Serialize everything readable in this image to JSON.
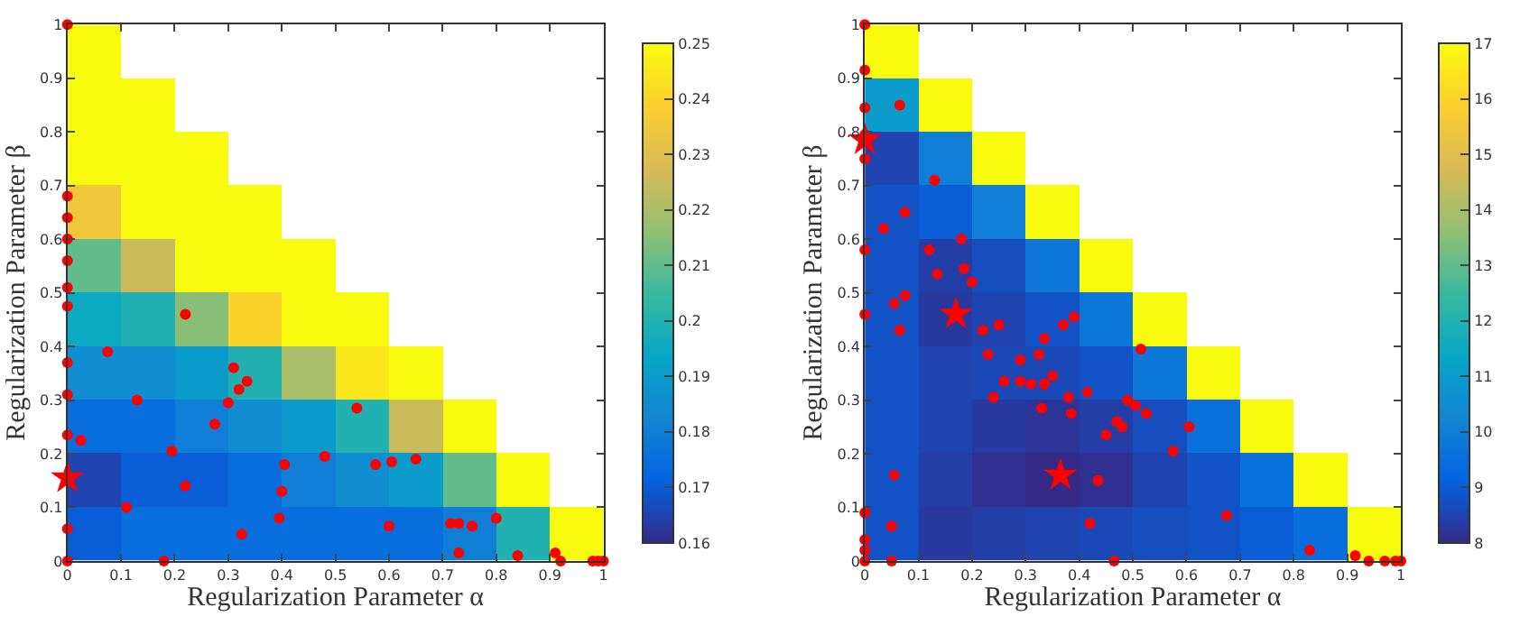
{
  "chart_data": [
    {
      "type": "heatmap",
      "xlabel": "Regularization Parameter α",
      "ylabel": "Regularization Parameter β",
      "xlim": [
        0,
        1
      ],
      "ylim": [
        0,
        1
      ],
      "xticks": [
        0,
        0.1,
        0.2,
        0.3,
        0.4,
        0.5,
        0.6,
        0.7,
        0.8,
        0.9,
        1
      ],
      "yticks": [
        0,
        0.1,
        0.2,
        0.3,
        0.4,
        0.5,
        0.6,
        0.7,
        0.8,
        0.9,
        1
      ],
      "clim": [
        0.16,
        0.25
      ],
      "cticks": [
        0.16,
        0.17,
        0.18,
        0.19,
        0.2,
        0.21,
        0.22,
        0.23,
        0.24,
        0.25
      ],
      "cells": [
        [
          0.25,
          null,
          null,
          null,
          null,
          null,
          null,
          null,
          null,
          null
        ],
        [
          0.25,
          0.25,
          null,
          null,
          null,
          null,
          null,
          null,
          null,
          null
        ],
        [
          0.25,
          0.25,
          0.25,
          null,
          null,
          null,
          null,
          null,
          null,
          null
        ],
        [
          0.235,
          0.25,
          0.25,
          0.25,
          null,
          null,
          null,
          null,
          null,
          null
        ],
        [
          0.21,
          0.225,
          0.25,
          0.25,
          0.25,
          null,
          null,
          null,
          null,
          null
        ],
        [
          0.195,
          0.2,
          0.215,
          0.24,
          0.25,
          0.25,
          null,
          null,
          null,
          null
        ],
        [
          0.185,
          0.185,
          0.19,
          0.2,
          0.22,
          0.245,
          0.25,
          null,
          null,
          null
        ],
        [
          0.175,
          0.175,
          0.18,
          0.185,
          0.19,
          0.2,
          0.225,
          0.25,
          null,
          null
        ],
        [
          0.165,
          0.17,
          0.17,
          0.175,
          0.18,
          0.185,
          0.19,
          0.21,
          0.25,
          null
        ],
        [
          0.17,
          0.175,
          0.175,
          0.175,
          0.175,
          0.175,
          0.175,
          0.18,
          0.2,
          0.25
        ]
      ],
      "series": [
        {
          "type": "scatter",
          "marker": "circle",
          "color": "#ff0000",
          "x": [
            0,
            0,
            0,
            0,
            0,
            0,
            0,
            0,
            0,
            0,
            0,
            0,
            0.025,
            0.075,
            0.13,
            0.11,
            0.22,
            0.195,
            0.22,
            0.18,
            0.31,
            0.32,
            0.335,
            0.3,
            0.275,
            0.325,
            0.405,
            0.4,
            0.395,
            0.48,
            0.54,
            0.575,
            0.605,
            0.65,
            0.6,
            0.715,
            0.73,
            0.755,
            0.8,
            0.73,
            0.84,
            0.91,
            0.92,
            0.975,
            0.98,
            0.99,
            1
          ],
          "values": [
            1,
            0.68,
            0.64,
            0.6,
            0.56,
            0.51,
            0.475,
            0.37,
            0.31,
            0.235,
            0.06,
            0,
            0.225,
            0.39,
            0.3,
            0.1,
            0.46,
            0.205,
            0.14,
            0,
            0.36,
            0.32,
            0.335,
            0.295,
            0.255,
            0.05,
            0.18,
            0.13,
            0.08,
            0.195,
            0.285,
            0.18,
            0.185,
            0.19,
            0.065,
            0.07,
            0.07,
            0.065,
            0.08,
            0.015,
            0.01,
            0.015,
            0,
            null,
            0,
            0,
            0
          ]
        },
        {
          "type": "scatter",
          "marker": "star",
          "color": "#ff0000",
          "x": [
            0
          ],
          "values": [
            0.155
          ]
        }
      ]
    },
    {
      "type": "heatmap",
      "xlabel": "Regularization Parameter α",
      "ylabel": "Regularization Parameter β",
      "xlim": [
        0,
        1
      ],
      "ylim": [
        0,
        1
      ],
      "xticks": [
        0,
        0.1,
        0.2,
        0.3,
        0.4,
        0.5,
        0.6,
        0.7,
        0.8,
        0.9,
        1
      ],
      "yticks": [
        0,
        0.1,
        0.2,
        0.3,
        0.4,
        0.5,
        0.6,
        0.7,
        0.8,
        0.9,
        1
      ],
      "clim": [
        8,
        17
      ],
      "cticks": [
        8,
        9,
        10,
        11,
        12,
        13,
        14,
        15,
        16,
        17
      ],
      "cells": [
        [
          17,
          null,
          null,
          null,
          null,
          null,
          null,
          null,
          null,
          null
        ],
        [
          11,
          17,
          null,
          null,
          null,
          null,
          null,
          null,
          null,
          null
        ],
        [
          8.5,
          10,
          17,
          null,
          null,
          null,
          null,
          null,
          null,
          null
        ],
        [
          8.8,
          9,
          10,
          17,
          null,
          null,
          null,
          null,
          null,
          null
        ],
        [
          8.8,
          8.4,
          8.7,
          9.8,
          17,
          null,
          null,
          null,
          null,
          null
        ],
        [
          8.8,
          8.3,
          8.5,
          8.8,
          9.8,
          17,
          null,
          null,
          null,
          null
        ],
        [
          8.8,
          8.5,
          8.6,
          8.6,
          8.8,
          9.8,
          17,
          null,
          null,
          null
        ],
        [
          8.8,
          8.5,
          8.3,
          8.2,
          8.4,
          8.7,
          9.6,
          17,
          null,
          null
        ],
        [
          8.8,
          8.4,
          8.1,
          8,
          8.1,
          8.5,
          8.8,
          9.6,
          17,
          null
        ],
        [
          8.8,
          8.3,
          8.4,
          8.5,
          8.6,
          8.7,
          8.8,
          9,
          9.5,
          17
        ]
      ],
      "series": [
        {
          "type": "scatter",
          "marker": "circle",
          "color": "#ff0000",
          "x": [
            0,
            0,
            0,
            0,
            0,
            0,
            0,
            0,
            0,
            0,
            0,
            0.065,
            0.13,
            0.075,
            0.035,
            0.12,
            0.18,
            0.135,
            0.185,
            0.2,
            0.055,
            0.075,
            0.065,
            0.22,
            0.25,
            0.23,
            0.37,
            0.39,
            0.335,
            0.325,
            0.29,
            0.26,
            0.29,
            0.31,
            0.335,
            0.35,
            0.24,
            0.33,
            0.38,
            0.385,
            0.415,
            0.49,
            0.505,
            0.525,
            0.47,
            0.48,
            0.45,
            0.515,
            0.605,
            0.575,
            0.435,
            0.42,
            0.055,
            0.05,
            0.05,
            0.465,
            0.675,
            0.83,
            0.915,
            0.94,
            0.97,
            0.99,
            1
          ],
          "values": [
            1,
            0.915,
            0.845,
            0.795,
            0.75,
            0.58,
            0.46,
            0.09,
            0.04,
            0.02,
            0,
            0.85,
            0.71,
            0.65,
            0.62,
            0.58,
            0.6,
            0.535,
            0.545,
            0.52,
            0.48,
            0.495,
            0.43,
            0.43,
            0.44,
            0.385,
            0.44,
            0.455,
            0.415,
            0.385,
            0.375,
            0.335,
            0.335,
            0.33,
            0.33,
            0.345,
            0.305,
            0.285,
            0.305,
            0.275,
            0.315,
            0.3,
            0.29,
            0.275,
            0.26,
            0.25,
            0.235,
            0.395,
            0.25,
            0.205,
            0.15,
            0.07,
            0.16,
            0.065,
            0,
            0,
            0.085,
            0.02,
            0.01,
            0,
            0,
            0,
            0
          ]
        },
        {
          "type": "scatter",
          "marker": "star",
          "color": "#ff0000",
          "x": [
            0,
            0.17,
            0.365
          ],
          "values": [
            0.785,
            0.46,
            0.16
          ]
        }
      ]
    }
  ]
}
